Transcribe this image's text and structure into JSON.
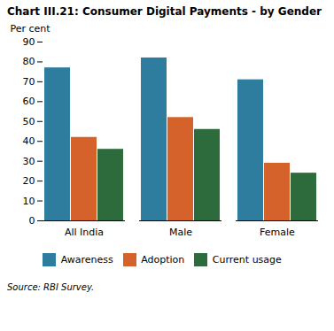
{
  "chart_data": {
    "type": "bar",
    "title": "Chart III.21: Consumer Digital Payments - by Gender",
    "categories": [
      "All India",
      "Male",
      "Female"
    ],
    "series": [
      {
        "name": "Awareness",
        "color": "#2e7d9e",
        "values": [
          77,
          82,
          71
        ]
      },
      {
        "name": "Adoption",
        "color": "#d4622a",
        "values": [
          42,
          52,
          29
        ]
      },
      {
        "name": "Current usage",
        "color": "#2d6b3c",
        "values": [
          36,
          46,
          24
        ]
      }
    ],
    "ylabel": "Per cent",
    "ylim": [
      0,
      90
    ],
    "yticks": [
      0,
      10,
      20,
      30,
      40,
      50,
      60,
      70,
      80,
      90
    ],
    "source": "Source: RBI Survey.",
    "legend": "bottom",
    "grid": false
  }
}
